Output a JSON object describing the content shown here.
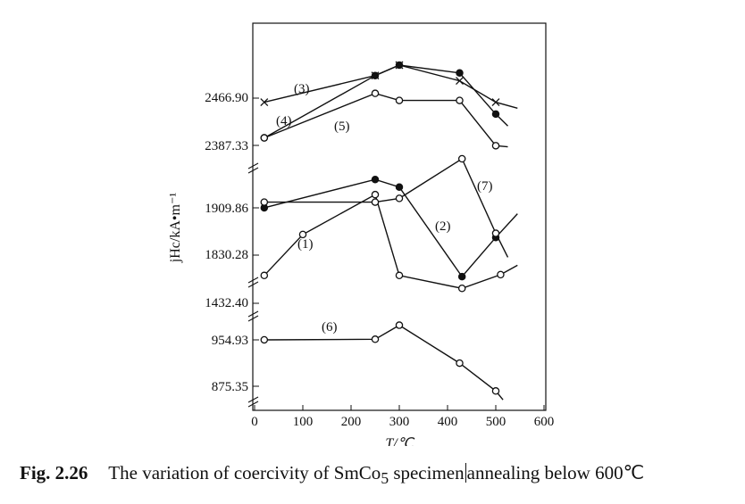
{
  "caption": {
    "figure_number": "Fig. 2.26",
    "text_before_cursor": "The variation of coercivity of SmCo",
    "subscript": "5",
    "text_middle": " specimen",
    "text_after_cursor": "annealing below 600℃"
  },
  "chart_data": {
    "type": "line",
    "title": "",
    "xlabel": "T/℃",
    "ylabel": "jHc/kA•m⁻¹",
    "xlim": [
      0,
      600
    ],
    "x_ticks": [
      "0",
      "100",
      "200",
      "300",
      "400",
      "500",
      "600"
    ],
    "y_ticks": [
      "875.35",
      "954.93",
      "1432.40",
      "1830.28",
      "1909.86",
      "2387.33",
      "2466.90"
    ],
    "y_axis_note": "broken axis (several breaks); values read against the labelled ticks",
    "series": [
      {
        "name": "(1)",
        "marker": "open-circle",
        "points": [
          [
            20,
            1780
          ],
          [
            100,
            1865
          ],
          [
            250,
            1945
          ],
          [
            300,
            1780
          ],
          [
            430,
            1748
          ],
          [
            510,
            1782
          ],
          [
            545,
            1805
          ]
        ]
      },
      {
        "name": "(2)",
        "marker": "filled-circle",
        "points": [
          [
            20,
            1910
          ],
          [
            250,
            1985
          ],
          [
            300,
            1965
          ],
          [
            430,
            1777
          ],
          [
            500,
            1860
          ],
          [
            545,
            1900
          ]
        ]
      },
      {
        "name": "(3)",
        "marker": "cross",
        "points": [
          [
            20,
            2460
          ],
          [
            250,
            2510
          ],
          [
            300,
            2530
          ],
          [
            425,
            2500
          ],
          [
            500,
            2460
          ],
          [
            545,
            2450
          ]
        ]
      },
      {
        "name": "(4)",
        "marker": "filled-circle",
        "points": [
          [
            20,
            2400
          ],
          [
            250,
            2510
          ],
          [
            300,
            2530
          ],
          [
            425,
            2515
          ],
          [
            500,
            2440
          ],
          [
            525,
            2420
          ]
        ]
      },
      {
        "name": "(5)",
        "marker": "open-circle",
        "points": [
          [
            20,
            2400
          ],
          [
            250,
            2476
          ],
          [
            300,
            2463
          ],
          [
            425,
            2463
          ],
          [
            500,
            2380
          ],
          [
            525,
            2350
          ]
        ]
      },
      {
        "name": "(6)",
        "marker": "open-circle",
        "points": [
          [
            20,
            955
          ],
          [
            250,
            956
          ],
          [
            300,
            980
          ],
          [
            425,
            915
          ],
          [
            500,
            870
          ],
          [
            515,
            860
          ]
        ]
      },
      {
        "name": "(7)",
        "marker": "open-circle",
        "points": [
          [
            20,
            1925
          ],
          [
            250,
            1925
          ],
          [
            300,
            1935
          ],
          [
            430,
            2040
          ],
          [
            500,
            1867
          ],
          [
            525,
            1825
          ]
        ]
      }
    ],
    "grid": false,
    "legend": "labels placed next to curves"
  }
}
